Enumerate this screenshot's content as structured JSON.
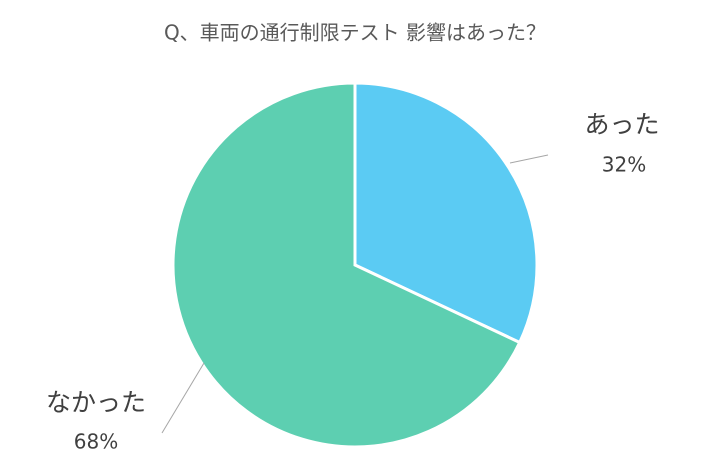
{
  "chart_data": {
    "type": "pie",
    "title": "Q、車両の通行制限テスト 影響はあった？",
    "categories": [
      "あった",
      "なかった"
    ],
    "values": [
      32,
      68
    ],
    "value_labels": [
      "32%",
      "68%"
    ],
    "colors": [
      "#5bcbf3",
      "#5dcfb1"
    ]
  }
}
